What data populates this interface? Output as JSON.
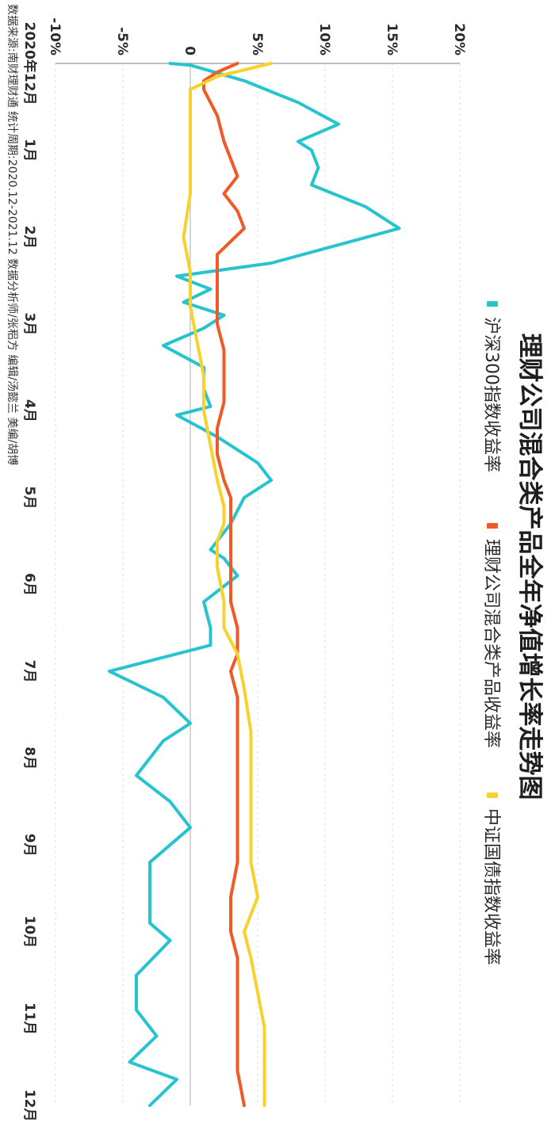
{
  "chart_data": {
    "type": "line",
    "title": "理财公司混合类产品全年净值增长率走势图",
    "orientation": "rotated-90-clockwise",
    "value_axis": {
      "ticks": [
        "-10%",
        "-5%",
        "0",
        "5%",
        "10%",
        "15%",
        "20%"
      ],
      "tick_values": [
        -10,
        -5,
        0,
        5,
        10,
        15,
        20
      ],
      "range": [
        -10,
        20
      ]
    },
    "time_axis": {
      "labels": [
        "2020年12月",
        "1月",
        "2月",
        "3月",
        "4月",
        "5月",
        "6月",
        "7月",
        "8月",
        "9月",
        "10月",
        "11月",
        "12月"
      ],
      "range": [
        0,
        12
      ]
    },
    "grid": true,
    "legend_position": "top",
    "series": [
      {
        "name": "沪深300指数收益率",
        "color": "#27c4cf",
        "t": [
          0,
          0.02,
          0.2,
          0.45,
          0.7,
          0.9,
          1.0,
          1.2,
          1.4,
          1.65,
          1.9,
          2.3,
          2.45,
          2.6,
          2.75,
          2.9,
          3.05,
          3.25,
          3.5,
          3.6,
          3.75,
          3.95,
          4.05,
          4.3,
          4.6,
          4.8,
          5.0,
          5.3,
          5.6,
          5.7,
          5.9,
          6.2,
          6.5,
          6.7,
          7.0,
          7.3,
          7.6,
          7.8,
          8.2,
          8.5,
          8.8,
          9.2,
          9.6,
          9.9,
          10.1,
          10.5,
          10.9,
          11.2,
          11.5,
          11.7,
          12.0
        ],
        "values": [
          -1.5,
          0,
          4,
          8,
          11,
          8,
          9,
          9.5,
          9,
          13,
          15.5,
          6,
          -1,
          1.5,
          -0.5,
          2.5,
          1,
          -2,
          1,
          1,
          1,
          1.5,
          -1,
          2,
          5,
          6,
          4,
          3,
          1.5,
          2.5,
          3.5,
          1,
          1.5,
          1.5,
          -6,
          -2,
          0,
          -2,
          -4,
          -1.5,
          0,
          -3,
          -3,
          -3,
          -1.5,
          -4,
          -4,
          -2.5,
          -4.5,
          -1,
          -3
        ]
      },
      {
        "name": "理财公司混合类产品收益率",
        "color": "#f05a28",
        "t": [
          0,
          0.1,
          0.2,
          0.3,
          0.6,
          0.9,
          1.1,
          1.3,
          1.5,
          1.7,
          1.9,
          2.2,
          2.5,
          3.0,
          3.3,
          3.6,
          3.9,
          4.2,
          4.5,
          4.8,
          5.0,
          5.3,
          5.6,
          5.9,
          6.2,
          6.5,
          6.8,
          7.0,
          7.3,
          7.7,
          8.0,
          8.4,
          8.8,
          9.2,
          9.6,
          10.0,
          10.3,
          10.6,
          10.9,
          11.2,
          11.6,
          12.0
        ],
        "values": [
          3.5,
          2,
          1,
          1,
          2,
          2.5,
          3,
          3.5,
          2.5,
          3.5,
          4,
          2,
          2,
          2,
          2.5,
          2.5,
          2.5,
          2,
          2,
          2.5,
          3,
          3,
          3,
          3,
          3,
          3.5,
          3.5,
          3,
          3.5,
          3.5,
          3.5,
          3.5,
          3.5,
          3.5,
          3,
          3,
          3.5,
          3.5,
          3.5,
          3.5,
          3.5,
          4
        ]
      },
      {
        "name": "中证国债指数收益率",
        "color": "#f7d22e",
        "t": [
          0,
          0.15,
          0.3,
          0.6,
          1.0,
          1.5,
          2.0,
          2.4,
          2.8,
          3.2,
          3.6,
          4.0,
          4.4,
          4.8,
          5.1,
          5.3,
          5.5,
          5.8,
          6.2,
          6.5,
          6.8,
          7.2,
          7.7,
          8.2,
          8.7,
          9.2,
          9.6,
          10.0,
          10.3,
          10.7,
          11.1,
          11.5,
          12.0
        ],
        "values": [
          6,
          2,
          0,
          0,
          0,
          0,
          -0.5,
          0,
          0,
          0.5,
          1,
          1,
          1.5,
          2,
          2.5,
          2.5,
          2,
          2,
          2.5,
          2.5,
          3.5,
          4,
          4.5,
          4.5,
          4.5,
          4.5,
          5,
          4,
          4.5,
          5,
          5.5,
          5.5,
          5.5
        ]
      }
    ],
    "source": "数据来源:南财理财通 统计周期:2020.12-2021.12 数据分析师/张稆方 编辑/汤懿兰 美编/胡博"
  }
}
